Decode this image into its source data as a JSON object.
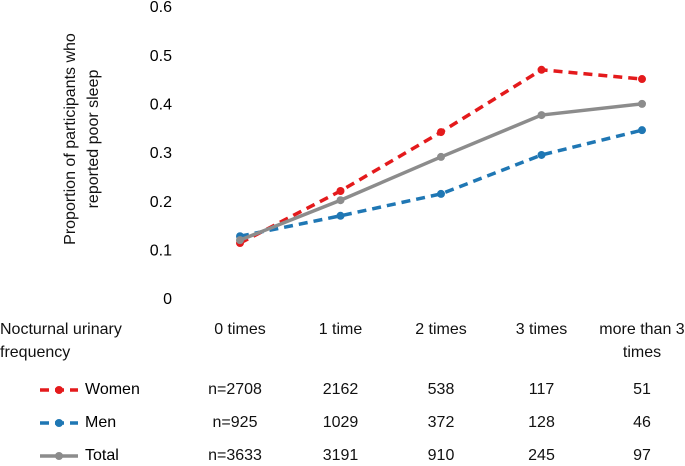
{
  "chart_data": {
    "type": "line",
    "y_label": "Proportion of participants who reported poor sleep",
    "x_label": "Nocturnal urinary frequency",
    "categories": [
      "0 times",
      "1 time",
      "2 times",
      "3 times",
      "more than 3 times"
    ],
    "ylim": [
      0,
      0.6
    ],
    "yticks": [
      0,
      0.1,
      0.2,
      0.3,
      0.4,
      0.5,
      0.6
    ],
    "grid": false,
    "series": [
      {
        "name": "Women",
        "color": "#e41a1c",
        "line_style": "dashed",
        "values": [
          0.117,
          0.224,
          0.345,
          0.473,
          0.454
        ],
        "counts": [
          2708,
          2162,
          538,
          117,
          51
        ],
        "count_labels": [
          "n=2708",
          "2162",
          "538",
          "117",
          "51"
        ]
      },
      {
        "name": "Men",
        "color": "#1f77b4",
        "line_style": "dashed",
        "values": [
          0.131,
          0.173,
          0.218,
          0.298,
          0.349
        ],
        "counts": [
          925,
          1029,
          372,
          128,
          46
        ],
        "count_labels": [
          "n=925",
          "1029",
          "372",
          "128",
          "46"
        ]
      },
      {
        "name": "Total",
        "color": "#8c8c8c",
        "line_style": "solid",
        "values": [
          0.123,
          0.205,
          0.294,
          0.38,
          0.403
        ],
        "counts": [
          3633,
          3191,
          910,
          245,
          97
        ],
        "count_labels": [
          "n=3633",
          "3191",
          "910",
          "245",
          "97"
        ]
      }
    ]
  }
}
